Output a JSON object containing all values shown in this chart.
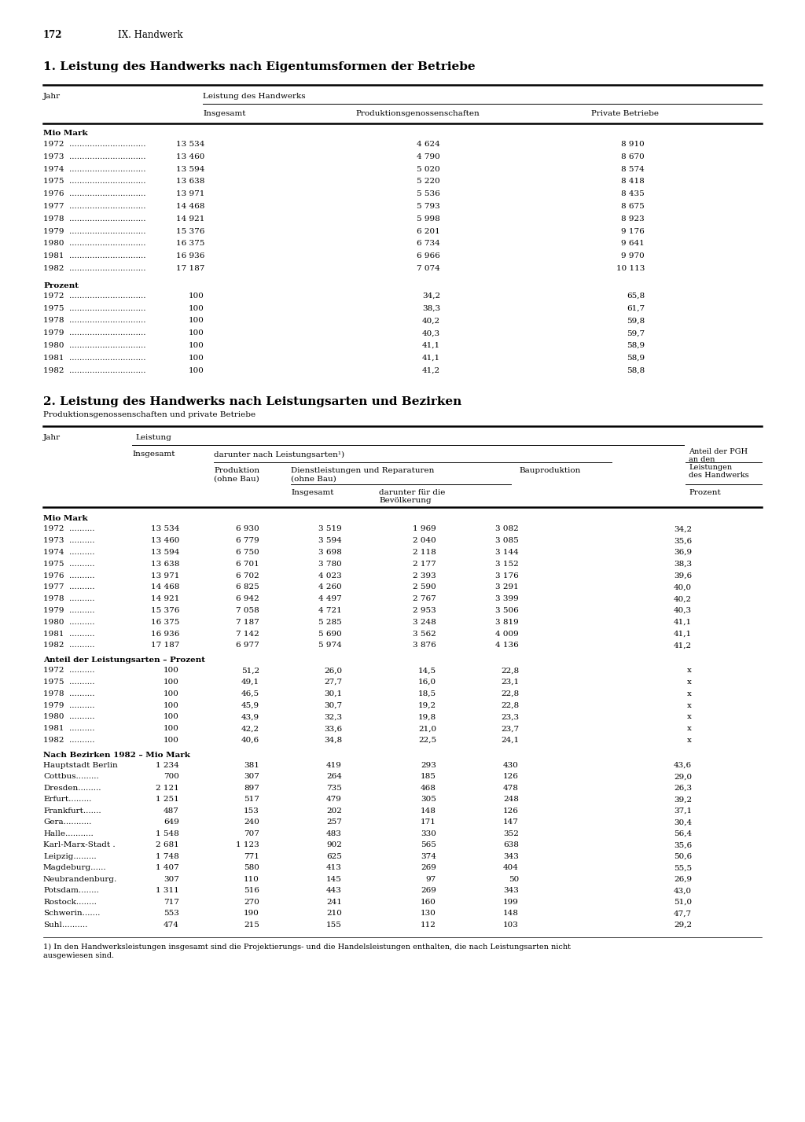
{
  "page_number": "172",
  "chapter": "IX. Handwerk",
  "section1_title": "1. Leistung des Handwerks nach Eigentumsformen der Betriebe",
  "section2_title": "2. Leistung des Handwerks nach Leistungsarten und Bezirken",
  "section2_subtitle": "Produktionsgenossenschaften und private Betriebe",
  "footnote": "1) In den Handwerksleistungen insgesamt sind die Projektierungs- und die Handelsleistungen enthalten, die nach Leistungsarten nicht",
  "footnote2": "ausgewiesen sind.",
  "table1_header_group": "Leistung des Handwerks",
  "table1_mio_label": "Mio Mark",
  "table1_mio_data": [
    [
      "1972",
      "13 534",
      "4 624",
      "8 910"
    ],
    [
      "1973",
      "13 460",
      "4 790",
      "8 670"
    ],
    [
      "1974",
      "13 594",
      "5 020",
      "8 574"
    ],
    [
      "1975",
      "13 638",
      "5 220",
      "8 418"
    ],
    [
      "1976",
      "13 971",
      "5 536",
      "8 435"
    ],
    [
      "1977",
      "14 468",
      "5 793",
      "8 675"
    ],
    [
      "1978",
      "14 921",
      "5 998",
      "8 923"
    ],
    [
      "1979",
      "15 376",
      "6 201",
      "9 176"
    ],
    [
      "1980",
      "16 375",
      "6 734",
      "9 641"
    ],
    [
      "1981",
      "16 936",
      "6 966",
      "9 970"
    ],
    [
      "1982",
      "17 187",
      "7 074",
      "10 113"
    ]
  ],
  "table1_pct_label": "Prozent",
  "table1_pct_data": [
    [
      "1972",
      "100",
      "34,2",
      "65,8"
    ],
    [
      "1975",
      "100",
      "38,3",
      "61,7"
    ],
    [
      "1978",
      "100",
      "40,2",
      "59,8"
    ],
    [
      "1979",
      "100",
      "40,3",
      "59,7"
    ],
    [
      "1980",
      "100",
      "41,1",
      "58,9"
    ],
    [
      "1981",
      "100",
      "41,1",
      "58,9"
    ],
    [
      "1982",
      "100",
      "41,2",
      "58,8"
    ]
  ],
  "table2_mio_label": "Mio Mark",
  "table2_mio_data": [
    [
      "1972",
      "13 534",
      "6 930",
      "3 519",
      "1 969",
      "3 082",
      "34,2"
    ],
    [
      "1973",
      "13 460",
      "6 779",
      "3 594",
      "2 040",
      "3 085",
      "35,6"
    ],
    [
      "1974",
      "13 594",
      "6 750",
      "3 698",
      "2 118",
      "3 144",
      "36,9"
    ],
    [
      "1975",
      "13 638",
      "6 701",
      "3 780",
      "2 177",
      "3 152",
      "38,3"
    ],
    [
      "1976",
      "13 971",
      "6 702",
      "4 023",
      "2 393",
      "3 176",
      "39,6"
    ],
    [
      "1977",
      "14 468",
      "6 825",
      "4 260",
      "2 590",
      "3 291",
      "40,0"
    ],
    [
      "1978",
      "14 921",
      "6 942",
      "4 497",
      "2 767",
      "3 399",
      "40,2"
    ],
    [
      "1979",
      "15 376",
      "7 058",
      "4 721",
      "2 953",
      "3 506",
      "40,3"
    ],
    [
      "1980",
      "16 375",
      "7 187",
      "5 285",
      "3 248",
      "3 819",
      "41,1"
    ],
    [
      "1981",
      "16 936",
      "7 142",
      "5 690",
      "3 562",
      "4 009",
      "41,1"
    ],
    [
      "1982",
      "17 187",
      "6 977",
      "5 974",
      "3 876",
      "4 136",
      "41,2"
    ]
  ],
  "table2_anteil_label": "Anteil der Leistungsarten – Prozent",
  "table2_anteil_data": [
    [
      "1972",
      "100",
      "51,2",
      "26,0",
      "14,5",
      "22,8",
      "x"
    ],
    [
      "1975",
      "100",
      "49,1",
      "27,7",
      "16,0",
      "23,1",
      "x"
    ],
    [
      "1978",
      "100",
      "46,5",
      "30,1",
      "18,5",
      "22,8",
      "x"
    ],
    [
      "1979",
      "100",
      "45,9",
      "30,7",
      "19,2",
      "22,8",
      "x"
    ],
    [
      "1980",
      "100",
      "43,9",
      "32,3",
      "19,8",
      "23,3",
      "x"
    ],
    [
      "1981",
      "100",
      "42,2",
      "33,6",
      "21,0",
      "23,7",
      "x"
    ],
    [
      "1982",
      "100",
      "40,6",
      "34,8",
      "22,5",
      "24,1",
      "x"
    ]
  ],
  "table2_bezirke_label": "Nach Bezirken 1982 – Mio Mark",
  "table2_bezirke_data": [
    [
      "Hauptstadt Berlin",
      "1 234",
      "",
      "381",
      "419",
      "293",
      "430",
      "43,6"
    ],
    [
      "Cottbus",
      "700",
      "........",
      "307",
      "264",
      "185",
      "126",
      "29,0"
    ],
    [
      "Dresden",
      "2 121",
      "........",
      "897",
      "735",
      "468",
      "478",
      "26,3"
    ],
    [
      "Erfurt",
      "1 251",
      "........",
      "517",
      "479",
      "305",
      "248",
      "39,2"
    ],
    [
      "Frankfurt",
      "487",
      "........",
      "153",
      "202",
      "148",
      "126",
      "37,1"
    ],
    [
      "Gera",
      "649",
      "........",
      "240",
      "257",
      "171",
      "147",
      "30,4"
    ],
    [
      "Halle",
      "1 548",
      "........",
      "707",
      "483",
      "330",
      "352",
      "56,4"
    ],
    [
      "Karl-Marx-Stadt",
      "2 681",
      "",
      "1 123",
      "902",
      "565",
      "638",
      "35,6"
    ],
    [
      "Leipzig",
      "1 748",
      "........",
      "771",
      "625",
      "374",
      "343",
      "50,6"
    ],
    [
      "Magdeburg",
      "1 407",
      "........",
      "580",
      "413",
      "269",
      "404",
      "55,5"
    ],
    [
      "Neubrandenburg",
      "307",
      "........",
      "110",
      "145",
      "97",
      "50",
      "26,9"
    ],
    [
      "Potsdam",
      "1 311",
      "........",
      "516",
      "443",
      "269",
      "343",
      "43,0"
    ],
    [
      "Rostock",
      "717",
      "........",
      "270",
      "241",
      "160",
      "199",
      "51,0"
    ],
    [
      "Schwerin",
      "553",
      "........",
      "190",
      "210",
      "130",
      "148",
      "47,7"
    ],
    [
      "Suhl",
      "474",
      "........",
      "215",
      "155",
      "112",
      "103",
      "29,2"
    ]
  ],
  "t1_dots_long": "..............................",
  "t2_dots_short": "..........",
  "t2_city_dots": {
    "Cottbus": ".........",
    "Dresden": ".........",
    "Erfurt": ".........",
    "Frankfurt": ".......",
    "Gera": "...........",
    "Halle": "...........",
    "Leipzig": ".........",
    "Magdeburg": "......",
    "Neubrandenburg": ".",
    "Potsdam": "........",
    "Rostock": "........",
    "Schwerin": ".......",
    "Suhl": ".........."
  }
}
